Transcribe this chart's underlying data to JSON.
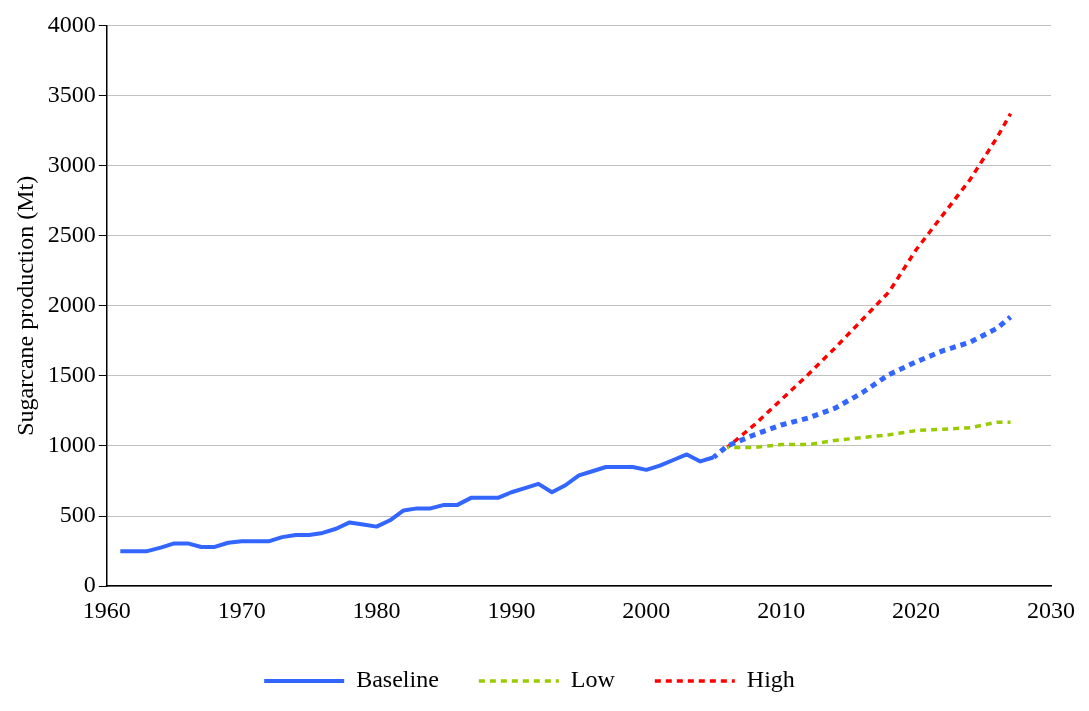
{
  "chart_data": {
    "type": "line",
    "ylabel": "Sugarcane production (Mt)",
    "xlim": [
      1960,
      2030
    ],
    "xticks": [
      1960,
      1970,
      1980,
      1990,
      2000,
      2010,
      2020,
      2030
    ],
    "ylim": [
      0,
      4000
    ],
    "yticks": [
      0,
      500,
      1000,
      1500,
      2000,
      2500,
      3000,
      3500,
      4000
    ],
    "grid": "y",
    "legend": "bottom",
    "marker": "none",
    "series": [
      {
        "name": "Baseline",
        "color": "#3366ff",
        "line_style": "solid",
        "x": [
          1961,
          1962,
          1963,
          1964,
          1965,
          1966,
          1967,
          1968,
          1969,
          1970,
          1971,
          1972,
          1973,
          1974,
          1975,
          1976,
          1977,
          1978,
          1979,
          1980,
          1981,
          1982,
          1983,
          1984,
          1985,
          1986,
          1987,
          1988,
          1989,
          1990,
          1991,
          1992,
          1993,
          1994,
          1995,
          1996,
          1997,
          1998,
          1999,
          2000,
          2001,
          2002,
          2003,
          2004,
          2005
        ],
        "values": [
          250,
          250,
          250,
          275,
          305,
          305,
          280,
          280,
          310,
          320,
          320,
          320,
          350,
          365,
          365,
          380,
          410,
          455,
          440,
          425,
          470,
          540,
          555,
          555,
          580,
          580,
          630,
          630,
          630,
          670,
          700,
          730,
          670,
          720,
          790,
          820,
          850,
          850,
          850,
          830,
          860,
          900,
          940,
          890,
          920
        ]
      },
      {
        "color": "#3366ff",
        "line_style": "dotted",
        "x": [
          2005,
          2006,
          2008,
          2010,
          2012,
          2014,
          2016,
          2018,
          2020,
          2022,
          2024,
          2026,
          2027
        ],
        "values": [
          920,
          1000,
          1080,
          1150,
          1200,
          1270,
          1380,
          1510,
          1600,
          1680,
          1740,
          1840,
          1920
        ]
      },
      {
        "name": "Low",
        "color": "#99cc00",
        "line_style": "dashed",
        "x": [
          2006,
          2008,
          2010,
          2012,
          2014,
          2016,
          2018,
          2020,
          2022,
          2024,
          2026,
          2027
        ],
        "values": [
          990,
          990,
          1010,
          1010,
          1040,
          1060,
          1080,
          1110,
          1120,
          1130,
          1170,
          1170
        ]
      },
      {
        "name": "High",
        "color": "#ff0000",
        "line_style": "dashed",
        "x": [
          2006,
          2008,
          2010,
          2012,
          2014,
          2016,
          2018,
          2020,
          2022,
          2024,
          2026,
          2027
        ],
        "values": [
          990,
          1150,
          1330,
          1510,
          1700,
          1900,
          2100,
          2400,
          2650,
          2900,
          3200,
          3370
        ]
      }
    ]
  }
}
